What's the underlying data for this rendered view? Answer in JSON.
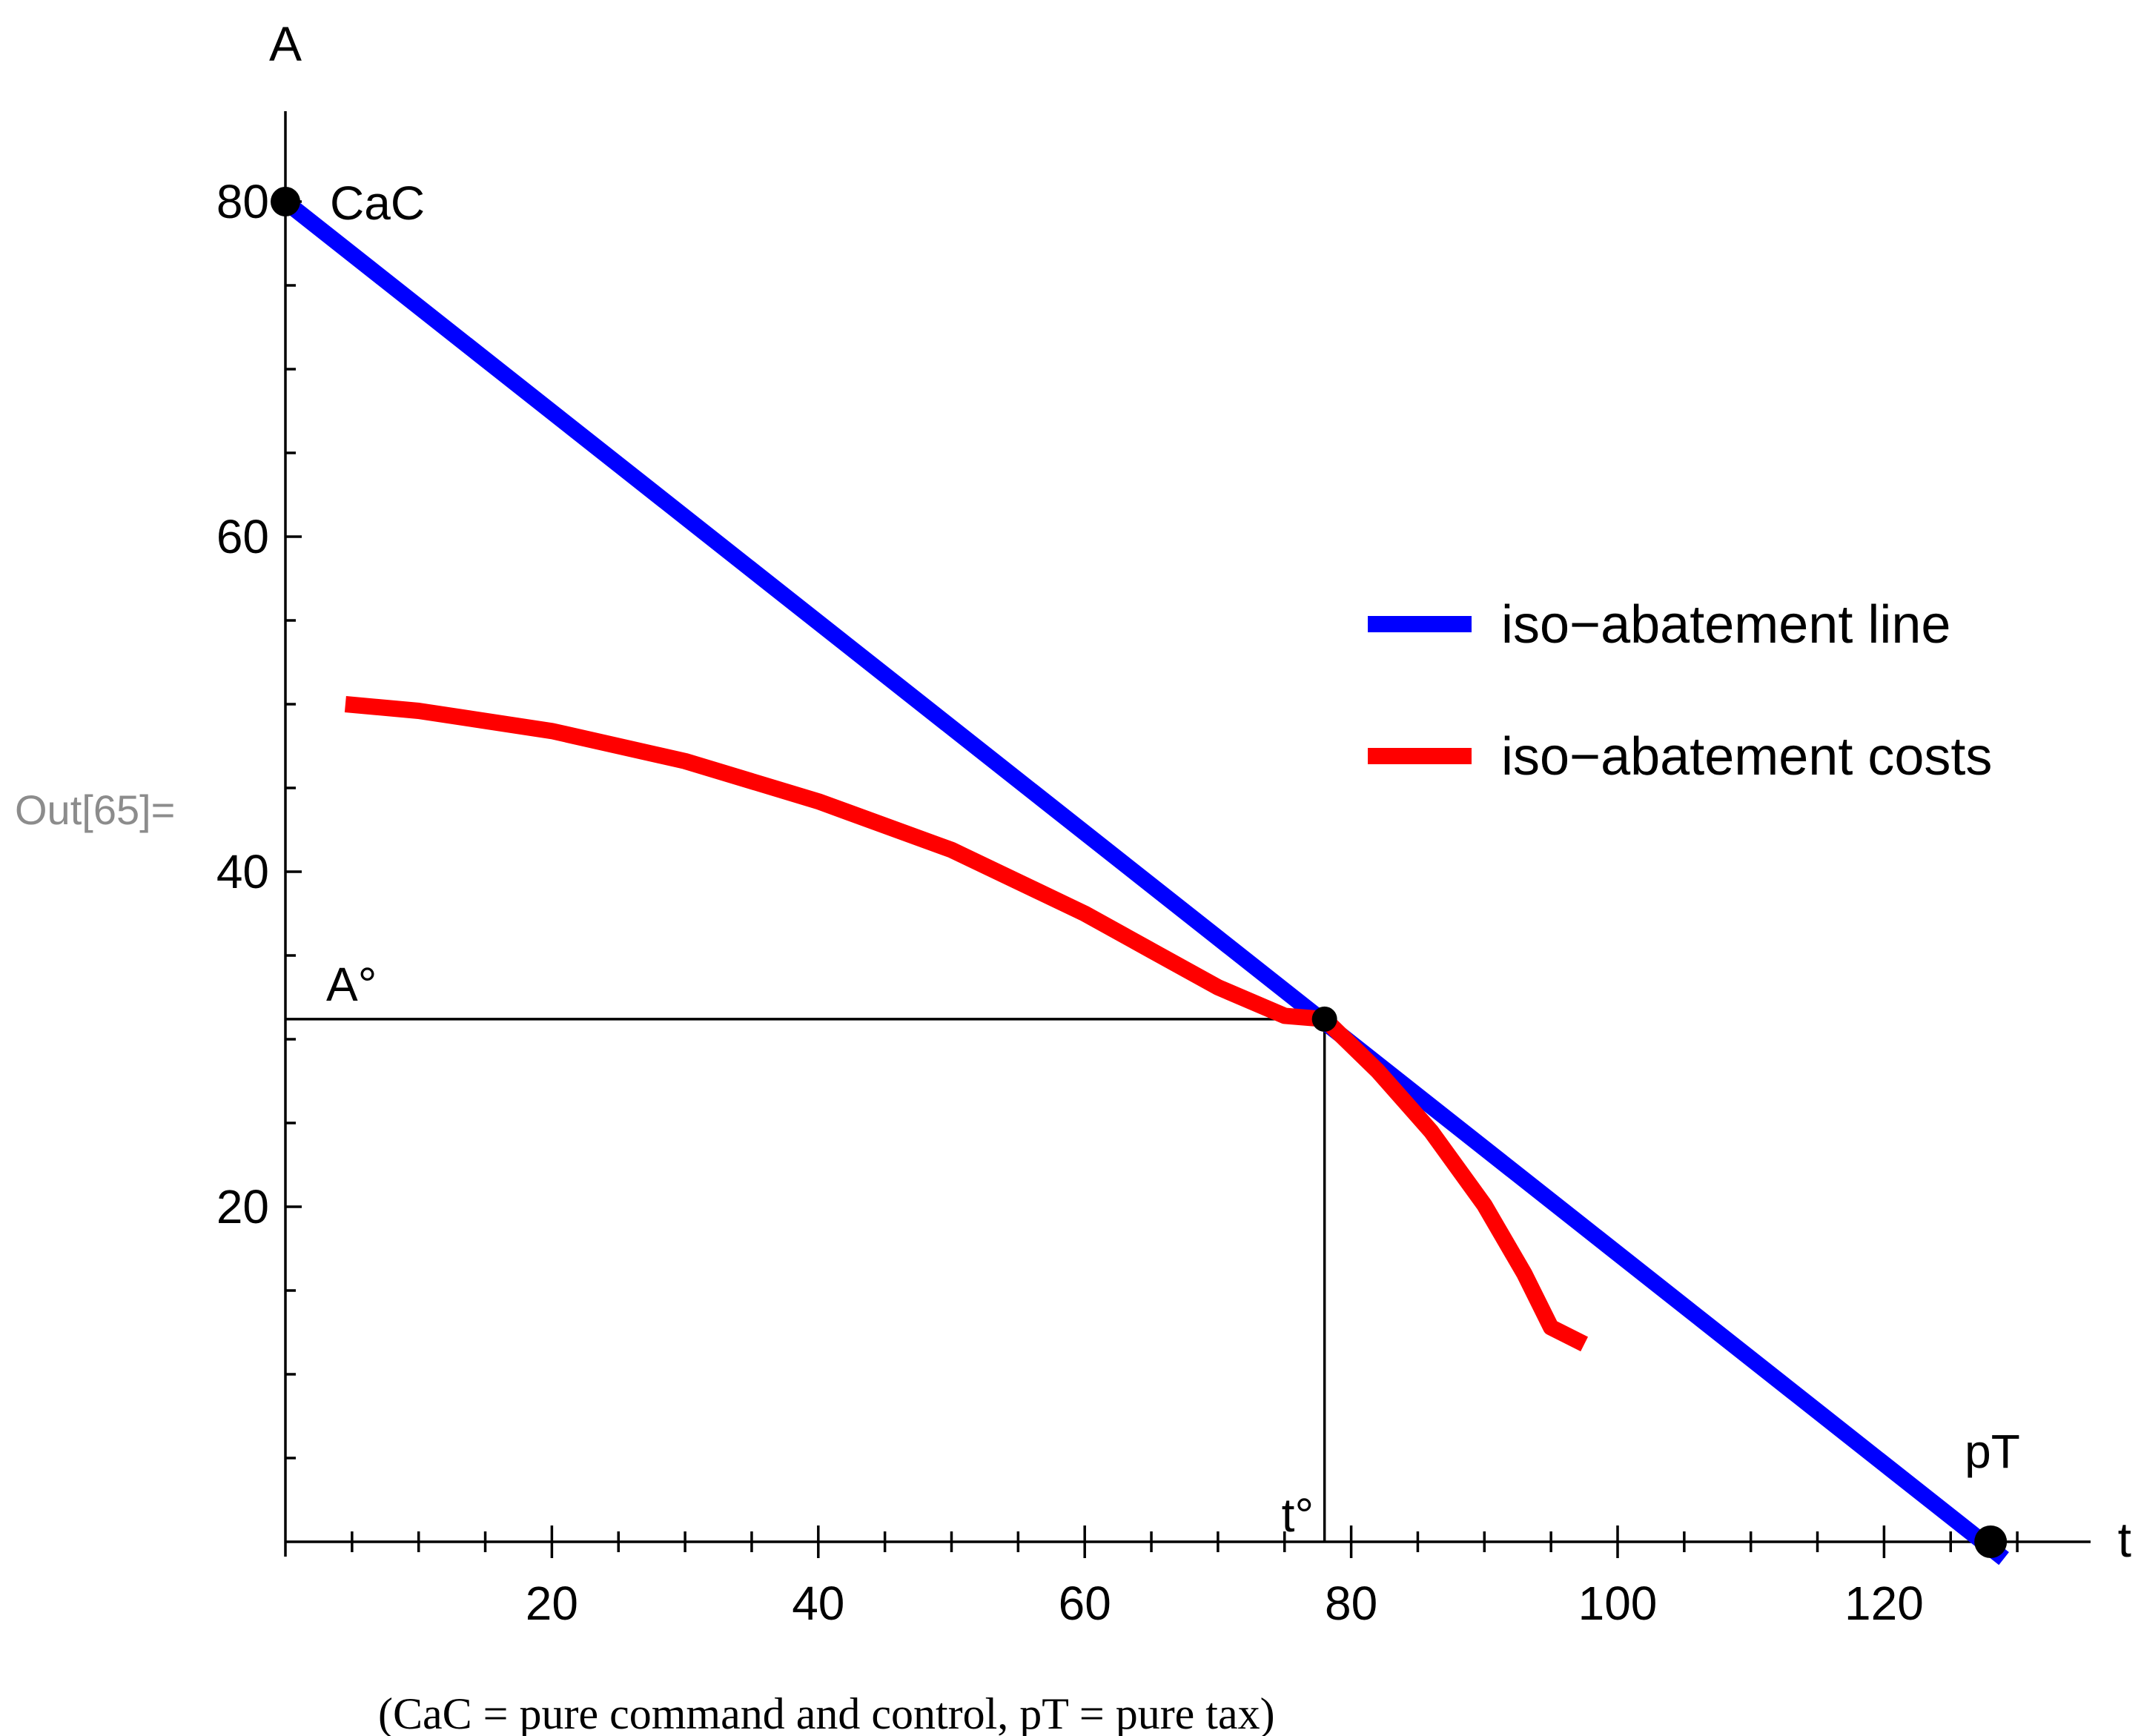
{
  "output_label": "Out[65]=",
  "caption": "(CaC = pure command and control, pT = pure tax)",
  "chart_data": {
    "type": "line",
    "xlabel": "t",
    "ylabel": "A",
    "xlim": [
      0,
      135
    ],
    "ylim": [
      0,
      85
    ],
    "x_major_ticks": [
      20,
      40,
      60,
      80,
      100,
      120
    ],
    "x_minor_step": 5,
    "y_major_ticks": [
      20,
      40,
      60,
      80
    ],
    "y_minor_step": 5,
    "series": [
      {
        "name": "iso-abatement line",
        "color": "#0000ff",
        "x": [
          0,
          129
        ],
        "y": [
          80,
          -1
        ]
      },
      {
        "name": "iso-abatement costs",
        "color": "#ff0000",
        "x": [
          4.5,
          10,
          20,
          30,
          40,
          50,
          60,
          65,
          70,
          75,
          78,
          82,
          86,
          90,
          93,
          95,
          97.5
        ],
        "y": [
          50,
          49.6,
          48.4,
          46.6,
          44.2,
          41.3,
          37.5,
          35.3,
          33.1,
          31.4,
          31.2,
          28.1,
          24.5,
          20.1,
          16.0,
          12.8,
          11.8
        ]
      }
    ],
    "points": [
      {
        "label": "CaC",
        "x": 0,
        "y": 80
      },
      {
        "label": "",
        "x": 78,
        "y": 31.2
      },
      {
        "label": "pT",
        "x": 128,
        "y": 0
      }
    ],
    "annotations": {
      "a_star_label": "A°",
      "t_star_label": "t°",
      "a_star_value": 31.2,
      "t_star_value": 78
    },
    "legend": {
      "placement": "right",
      "entries": [
        "iso−abatement line",
        "iso−abatement costs"
      ]
    }
  }
}
